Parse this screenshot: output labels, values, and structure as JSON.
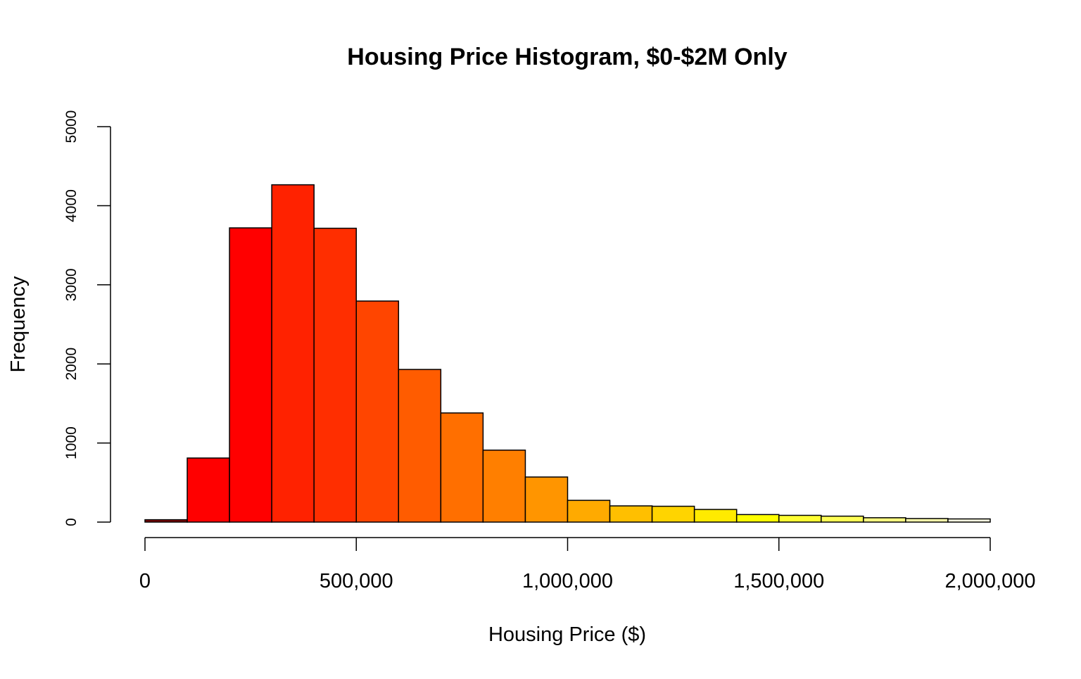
{
  "chart_data": {
    "type": "bar",
    "title": "Housing Price Histogram, $0-$2M Only",
    "xlabel": "Housing Price ($)",
    "ylabel": "Frequency",
    "xlim": [
      0,
      2000000
    ],
    "ylim": [
      0,
      5000
    ],
    "bin_width": 100000,
    "bins": [
      {
        "start": 0,
        "end": 100000,
        "count": 30,
        "color": "#8B0000"
      },
      {
        "start": 100000,
        "end": 200000,
        "count": 810,
        "color": "#FF0000"
      },
      {
        "start": 200000,
        "end": 300000,
        "count": 3720,
        "color": "#FF0000"
      },
      {
        "start": 300000,
        "end": 400000,
        "count": 4265,
        "color": "#FF2200"
      },
      {
        "start": 400000,
        "end": 500000,
        "count": 3715,
        "color": "#FF2E00"
      },
      {
        "start": 500000,
        "end": 600000,
        "count": 2795,
        "color": "#FF4500"
      },
      {
        "start": 600000,
        "end": 700000,
        "count": 1930,
        "color": "#FF5C00"
      },
      {
        "start": 700000,
        "end": 800000,
        "count": 1380,
        "color": "#FF6F00"
      },
      {
        "start": 800000,
        "end": 900000,
        "count": 910,
        "color": "#FF7F00"
      },
      {
        "start": 900000,
        "end": 1000000,
        "count": 570,
        "color": "#FF9500"
      },
      {
        "start": 1000000,
        "end": 1100000,
        "count": 275,
        "color": "#FFAA00"
      },
      {
        "start": 1100000,
        "end": 1200000,
        "count": 205,
        "color": "#FFBF00"
      },
      {
        "start": 1200000,
        "end": 1300000,
        "count": 200,
        "color": "#FFD400"
      },
      {
        "start": 1300000,
        "end": 1400000,
        "count": 160,
        "color": "#FFEA00"
      },
      {
        "start": 1400000,
        "end": 1500000,
        "count": 95,
        "color": "#FFFF00"
      },
      {
        "start": 1500000,
        "end": 1600000,
        "count": 85,
        "color": "#FFFF33"
      },
      {
        "start": 1600000,
        "end": 1700000,
        "count": 75,
        "color": "#FFFF55"
      },
      {
        "start": 1700000,
        "end": 1800000,
        "count": 55,
        "color": "#FFFF80"
      },
      {
        "start": 1800000,
        "end": 1900000,
        "count": 45,
        "color": "#FFFFAA"
      },
      {
        "start": 1900000,
        "end": 2000000,
        "count": 40,
        "color": "#FFFFE0"
      }
    ],
    "x_ticks": [
      {
        "value": 0,
        "label": "0"
      },
      {
        "value": 500000,
        "label": "500,000"
      },
      {
        "value": 1000000,
        "label": "1,000,000"
      },
      {
        "value": 1500000,
        "label": "1,500,000"
      },
      {
        "value": 2000000,
        "label": "2,000,000"
      }
    ],
    "y_ticks": [
      {
        "value": 0,
        "label": "0"
      },
      {
        "value": 1000,
        "label": "1000"
      },
      {
        "value": 2000,
        "label": "2000"
      },
      {
        "value": 3000,
        "label": "3000"
      },
      {
        "value": 4000,
        "label": "4000"
      },
      {
        "value": 5000,
        "label": "5000"
      }
    ],
    "grid": false,
    "legend": "none"
  }
}
